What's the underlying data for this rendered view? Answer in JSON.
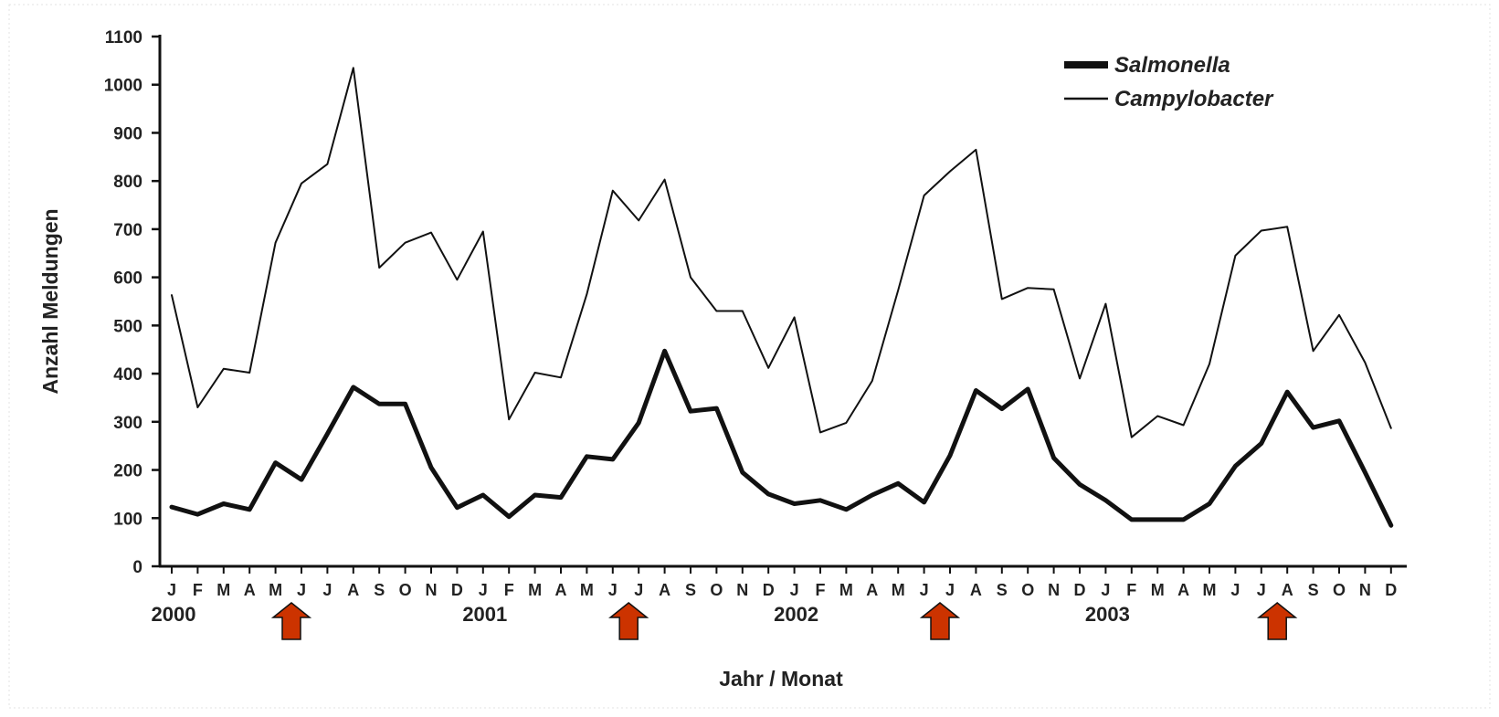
{
  "chart_data": {
    "type": "line",
    "xlabel": "Jahr / Monat",
    "ylabel": "Anzahl Meldungen",
    "ylim": [
      0,
      1100
    ],
    "yticks": [
      0,
      100,
      200,
      300,
      400,
      500,
      600,
      700,
      800,
      900,
      1000,
      1100
    ],
    "months": [
      "J",
      "F",
      "M",
      "A",
      "M",
      "J",
      "J",
      "A",
      "S",
      "O",
      "N",
      "D",
      "J",
      "F",
      "M",
      "A",
      "M",
      "J",
      "J",
      "A",
      "S",
      "O",
      "N",
      "D",
      "J",
      "F",
      "M",
      "A",
      "M",
      "J",
      "J",
      "A",
      "S",
      "O",
      "N",
      "D",
      "J",
      "F",
      "M",
      "A",
      "M",
      "J",
      "J",
      "A",
      "S",
      "O",
      "N",
      "D"
    ],
    "years": [
      {
        "label": "2000",
        "month_index": 0
      },
      {
        "label": "2001",
        "month_index": 12
      },
      {
        "label": "2002",
        "month_index": 24
      },
      {
        "label": "2003",
        "month_index": 36
      }
    ],
    "arrows_month_index": [
      5,
      18,
      30,
      43
    ],
    "legend_position": "top-right",
    "grid": false,
    "series": [
      {
        "name": "Salmonella",
        "style": "thick",
        "values": [
          123,
          108,
          130,
          118,
          215,
          180,
          275,
          372,
          337,
          337,
          205,
          122,
          148,
          103,
          148,
          143,
          228,
          222,
          298,
          447,
          322,
          328,
          195,
          150,
          130,
          137,
          118,
          148,
          172,
          133,
          230,
          365,
          327,
          368,
          225,
          170,
          137,
          97,
          97,
          97,
          130,
          208,
          255,
          362,
          288,
          302,
          195,
          85
        ]
      },
      {
        "name": "Campylobacter",
        "style": "thin",
        "values": [
          563,
          330,
          410,
          402,
          672,
          795,
          835,
          1035,
          620,
          672,
          693,
          595,
          695,
          305,
          402,
          392,
          565,
          780,
          718,
          803,
          600,
          530,
          530,
          412,
          517,
          278,
          298,
          385,
          573,
          770,
          820,
          865,
          555,
          578,
          575,
          390,
          545,
          268,
          312,
          293,
          420,
          645,
          697,
          705,
          447,
          522,
          423,
          287
        ]
      }
    ]
  },
  "colors": {
    "line": "#111111",
    "axis": "#111111",
    "arrow_fill": "#cc3300",
    "arrow_stroke": "#111111"
  }
}
